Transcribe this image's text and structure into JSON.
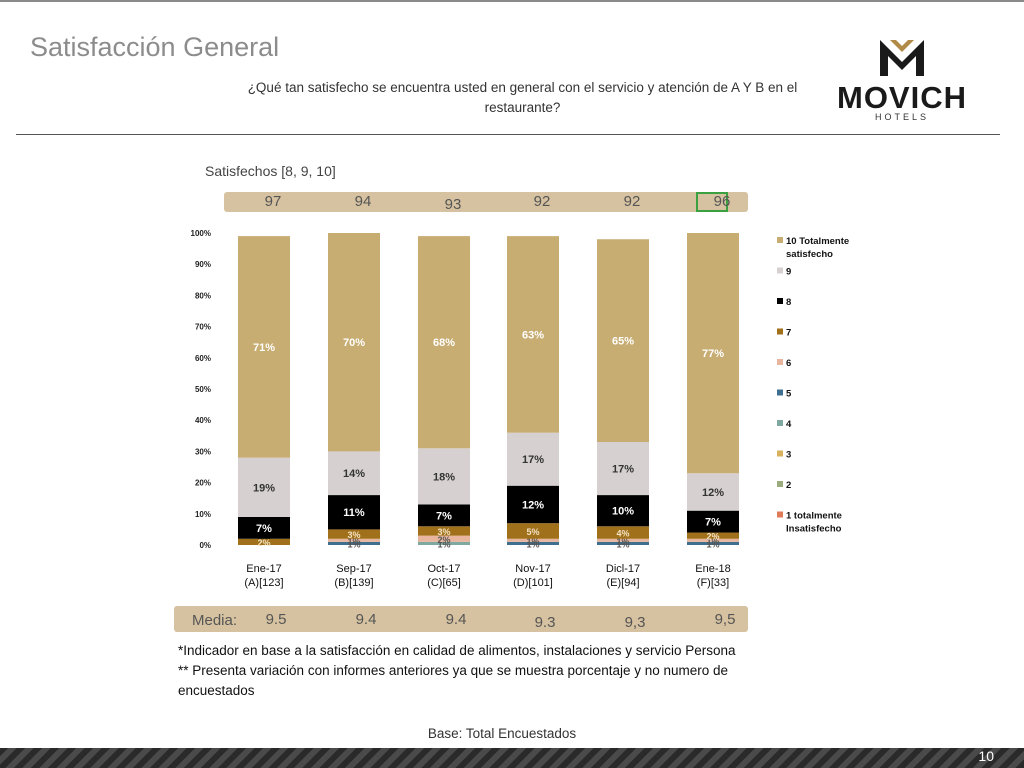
{
  "header": {
    "title": "Satisfacción General",
    "question": "¿Qué tan satisfecho se encuentra usted en general con el servicio y atención de A Y B en el restaurante?"
  },
  "logo": {
    "name": "MOVICH",
    "sub": "HOTELS"
  },
  "satisfied": {
    "label": "Satisfechos [8, 9, 10]",
    "values": [
      "97",
      "94",
      "93",
      "92",
      "92",
      "96"
    ],
    "highlight_index": 5
  },
  "media": {
    "label": "Media:",
    "values": [
      "9.5",
      "9.4",
      "9.4",
      "9.3",
      "9,3",
      "9,5"
    ]
  },
  "chart_data": {
    "type": "bar",
    "stacked": true,
    "categories": [
      "Ene-17\n(A)[123]",
      "Sep-17\n(B)[139]",
      "Oct-17\n(C)[65]",
      "Nov-17\n(D)[101]",
      "Dicl-17\n(E)[94]",
      "Ene-18\n(F)[33]"
    ],
    "ylim": [
      0,
      100
    ],
    "yticks": [
      "0%",
      "10%",
      "20%",
      "30%",
      "40%",
      "50%",
      "60%",
      "70%",
      "80%",
      "90%",
      "100%"
    ],
    "legend_position": "right",
    "series": [
      {
        "name": "1 totalmente Insatisfecho",
        "color": "#e07b5a",
        "values": [
          0,
          0,
          0,
          0,
          0,
          0
        ],
        "labels": [
          "0%",
          "0%",
          "0%",
          "0%",
          "0%",
          "0%"
        ]
      },
      {
        "name": "2",
        "color": "#9aab7e",
        "values": [
          0,
          0,
          0,
          0,
          0,
          0
        ],
        "labels": [
          "0%",
          "0%",
          "0%",
          "0%",
          "0%",
          "0%"
        ]
      },
      {
        "name": "3",
        "color": "#d9b25e",
        "values": [
          0,
          0,
          0,
          0,
          0,
          0
        ],
        "labels": [
          "0%",
          "0%",
          "0%",
          "0%",
          "0%",
          "0%"
        ]
      },
      {
        "name": "4",
        "color": "#7fa9a0",
        "values": [
          0,
          0,
          1,
          0,
          0,
          0
        ],
        "labels": [
          "0%",
          "0%",
          "1%",
          "0%",
          "0%",
          "0%"
        ]
      },
      {
        "name": "5",
        "color": "#3f6f8f",
        "values": [
          0,
          1,
          0,
          1,
          1,
          1
        ],
        "labels": [
          "0%",
          "1%",
          "0%",
          "1%",
          "1%",
          "1%"
        ]
      },
      {
        "name": "6",
        "color": "#e8b69e",
        "values": [
          0,
          1,
          2,
          1,
          1,
          1
        ],
        "labels": [
          "0%",
          "1%",
          "2%",
          "1%",
          "1%",
          "1%"
        ]
      },
      {
        "name": "7",
        "color": "#a0701a",
        "values": [
          2,
          3,
          3,
          5,
          4,
          2
        ],
        "labels": [
          "2%",
          "3%",
          "3%",
          "5%",
          "4%",
          "2%"
        ]
      },
      {
        "name": "8",
        "color": "#000000",
        "values": [
          7,
          11,
          7,
          12,
          10,
          7
        ],
        "labels": [
          "7%",
          "11%",
          "7%",
          "12%",
          "10%",
          "7%"
        ]
      },
      {
        "name": "9",
        "color": "#d6d0d0",
        "values": [
          19,
          14,
          18,
          17,
          17,
          12
        ],
        "labels": [
          "19%",
          "14%",
          "18%",
          "17%",
          "17%",
          "12%"
        ]
      },
      {
        "name": "10 Totalmente satisfecho",
        "color": "#c8ad72",
        "values": [
          71,
          70,
          68,
          63,
          65,
          77
        ],
        "labels": [
          "71%",
          "70%",
          "68%",
          "63%",
          "65%",
          "77%"
        ]
      }
    ]
  },
  "footnotes": {
    "line1": "*Indicador en base a la satisfacción en calidad de alimentos, instalaciones y servicio Persona",
    "line2": "** Presenta variación con informes anteriores ya que se muestra porcentaje y no numero de encuestados"
  },
  "base": "Base: Total Encuestados",
  "page_number": "10"
}
